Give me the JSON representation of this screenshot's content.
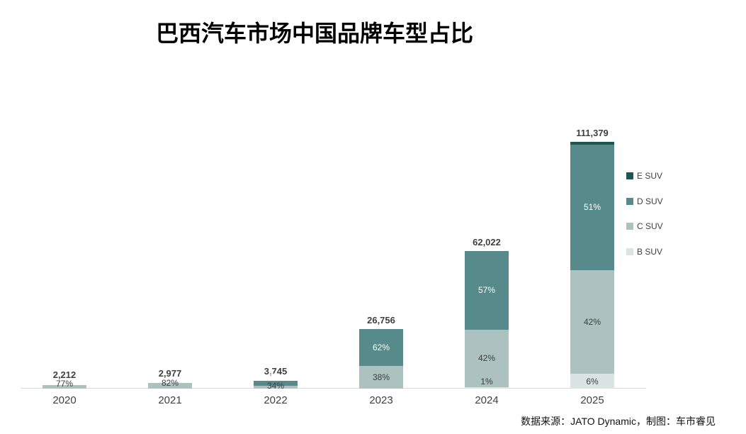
{
  "title": "巴西汽车市场中国品牌车型占比",
  "footer": {
    "text": "数据来源：JATO Dynamic，制图：车市睿见"
  },
  "chart_data": {
    "type": "bar",
    "subtype": "stacked",
    "title": "巴西汽车市场中国品牌车型占比",
    "categories": [
      "2020",
      "2021",
      "2022",
      "2023",
      "2024",
      "2025"
    ],
    "totals": [
      2212,
      2977,
      3745,
      26756,
      62022,
      111379
    ],
    "total_labels": [
      "2,212",
      "2,977",
      "3,745",
      "26,756",
      "62,022",
      "111,379"
    ],
    "ylim": [
      0,
      111379
    ],
    "grid": false,
    "legend_position": "right",
    "axis_line_color": "#d9d9d9",
    "series": [
      {
        "name": "E SUV",
        "color": "#1d5752",
        "label_color": "#ffffff"
      },
      {
        "name": "D SUV",
        "color": "#578a8b",
        "label_color": "#ffffff"
      },
      {
        "name": "C SUV",
        "color": "#abc2c0",
        "label_color": "#3d3d3d"
      },
      {
        "name": "B SUV",
        "color": "#dae5e3",
        "label_color": "#3d3d3d"
      }
    ],
    "bars": [
      {
        "year": "2020",
        "total": 2212,
        "total_label": "2,212",
        "segments": [
          {
            "series": "C SUV",
            "pct": 77,
            "label": "77%",
            "label_dy": -4
          }
        ]
      },
      {
        "year": "2021",
        "total": 2977,
        "total_label": "2,977",
        "segments": [
          {
            "series": "C SUV",
            "pct": 82,
            "label": "82%",
            "label_dy": -4
          }
        ]
      },
      {
        "year": "2022",
        "total": 3745,
        "total_label": "3,745",
        "segments": [
          {
            "series": "D SUV",
            "pct": 61,
            "label": "61%",
            "label_dy": -9
          },
          {
            "series": "C SUV",
            "pct": 34,
            "label": "34%",
            "label_dy": -2
          }
        ]
      },
      {
        "year": "2023",
        "total": 26756,
        "total_label": "26,756",
        "segments": [
          {
            "series": "D SUV",
            "pct": 62,
            "label": "62%",
            "label_dy": 0
          },
          {
            "series": "C SUV",
            "pct": 38,
            "label": "38%",
            "label_dy": 0
          }
        ]
      },
      {
        "year": "2024",
        "total": 62022,
        "total_label": "62,022",
        "segments": [
          {
            "series": "D SUV",
            "pct": 57,
            "label": "57%",
            "label_dy": 0
          },
          {
            "series": "C SUV",
            "pct": 42,
            "label": "42%",
            "label_dy": 0
          },
          {
            "series": "B SUV",
            "pct": 1,
            "label": "1%",
            "label_dy": -9
          }
        ]
      },
      {
        "year": "2025",
        "total": 111379,
        "total_label": "111,379",
        "segments": [
          {
            "series": "E SUV",
            "pct": 1,
            "label": "",
            "label_dy": 0
          },
          {
            "series": "D SUV",
            "pct": 51,
            "label": "51%",
            "label_dy": 0
          },
          {
            "series": "C SUV",
            "pct": 42,
            "label": "42%",
            "label_dy": 0
          },
          {
            "series": "B SUV",
            "pct": 6,
            "label": "6%",
            "label_dy": 0
          }
        ]
      }
    ]
  }
}
